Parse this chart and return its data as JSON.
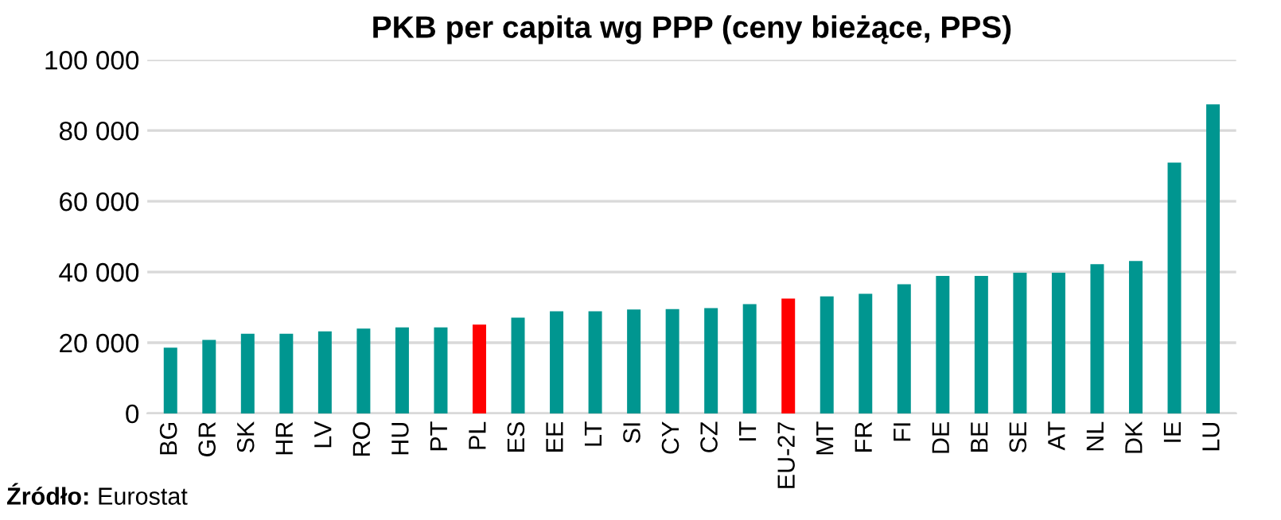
{
  "chart_data": {
    "type": "bar",
    "title": "PKB per capita wg PPP (ceny bieżące, PPS)",
    "categories": [
      "BG",
      "GR",
      "SK",
      "HR",
      "LV",
      "RO",
      "HU",
      "PT",
      "PL",
      "ES",
      "EE",
      "LT",
      "SI",
      "CY",
      "CZ",
      "IT",
      "EU-27",
      "MT",
      "FR",
      "FI",
      "DE",
      "BE",
      "SE",
      "AT",
      "NL",
      "DK",
      "IE",
      "LU"
    ],
    "values": [
      18600,
      20800,
      22500,
      22500,
      23200,
      24000,
      24300,
      24300,
      25100,
      27100,
      28900,
      28900,
      29400,
      29500,
      29800,
      30900,
      32500,
      33100,
      33800,
      36500,
      38900,
      38900,
      39800,
      39800,
      42200,
      43100,
      70900,
      87400
    ],
    "colors": [
      "#009690",
      "#009690",
      "#009690",
      "#009690",
      "#009690",
      "#009690",
      "#009690",
      "#009690",
      "#ff0000",
      "#009690",
      "#009690",
      "#009690",
      "#009690",
      "#009690",
      "#009690",
      "#009690",
      "#ff0000",
      "#009690",
      "#009690",
      "#009690",
      "#009690",
      "#009690",
      "#009690",
      "#009690",
      "#009690",
      "#009690",
      "#009690",
      "#009690"
    ],
    "ylim": [
      0,
      100000
    ],
    "yticks": [
      {
        "value": 0,
        "label": "0"
      },
      {
        "value": 20000,
        "label": "20 000"
      },
      {
        "value": 40000,
        "label": "40 000"
      },
      {
        "value": 60000,
        "label": "60 000"
      },
      {
        "value": 80000,
        "label": "80 000"
      },
      {
        "value": 100000,
        "label": "100 000"
      }
    ],
    "grid": "y",
    "legend": false,
    "annotations": [
      "Źródło: Eurostat"
    ]
  }
}
